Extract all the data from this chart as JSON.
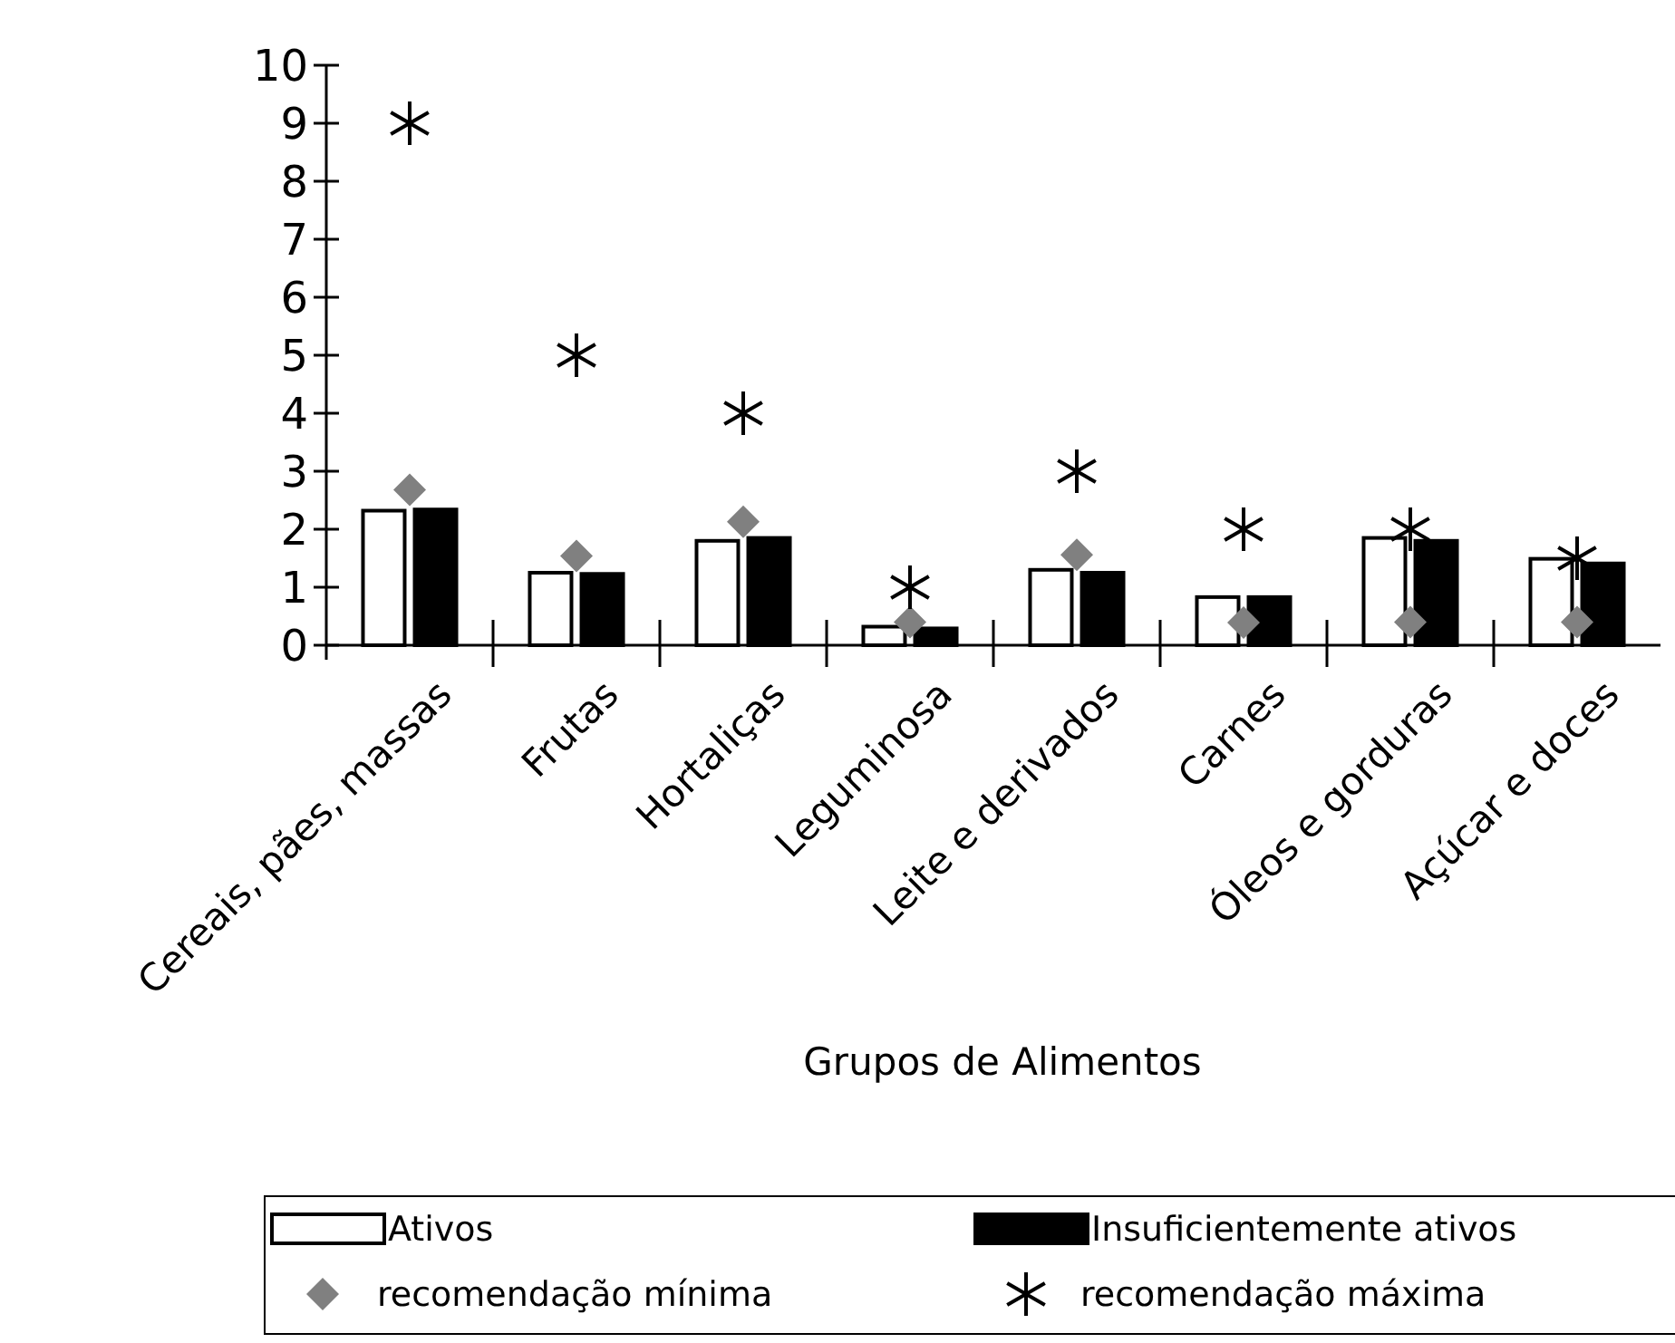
{
  "chart_data": {
    "type": "bar",
    "xlabel": "Grupos de Alimentos",
    "categories": [
      "Cereais, pães, massas",
      "Frutas",
      "Hortaliças",
      "Leguminosa",
      "Leite e derivados",
      "Carnes",
      "Óleos e gorduras",
      "Açúcar e doces"
    ],
    "series": [
      {
        "name": "Ativos",
        "color": "#ffffff",
        "values": [
          2.32,
          1.25,
          1.8,
          0.32,
          1.3,
          0.83,
          1.85,
          1.49
        ]
      },
      {
        "name": "Insuficientemente ativos",
        "color": "#000000",
        "values": [
          2.34,
          1.23,
          1.85,
          0.29,
          1.25,
          0.83,
          1.8,
          1.41
        ]
      },
      {
        "name": "recomendação mínima",
        "type": "scatter",
        "marker": "diamond",
        "color": "#808080",
        "values": [
          2.68,
          1.54,
          2.13,
          0.4,
          1.56,
          0.39,
          0.4,
          0.4
        ]
      },
      {
        "name": "recomendação máxima",
        "type": "scatter",
        "marker": "cross",
        "color": "#000000",
        "values": [
          9,
          5,
          4,
          1,
          3,
          2,
          2,
          1.5
        ]
      }
    ],
    "ylim": [
      0,
      10
    ],
    "yticks": [
      0,
      1,
      2,
      3,
      4,
      5,
      6,
      7,
      8,
      9,
      10
    ],
    "grid": false,
    "legend": "bottom"
  }
}
